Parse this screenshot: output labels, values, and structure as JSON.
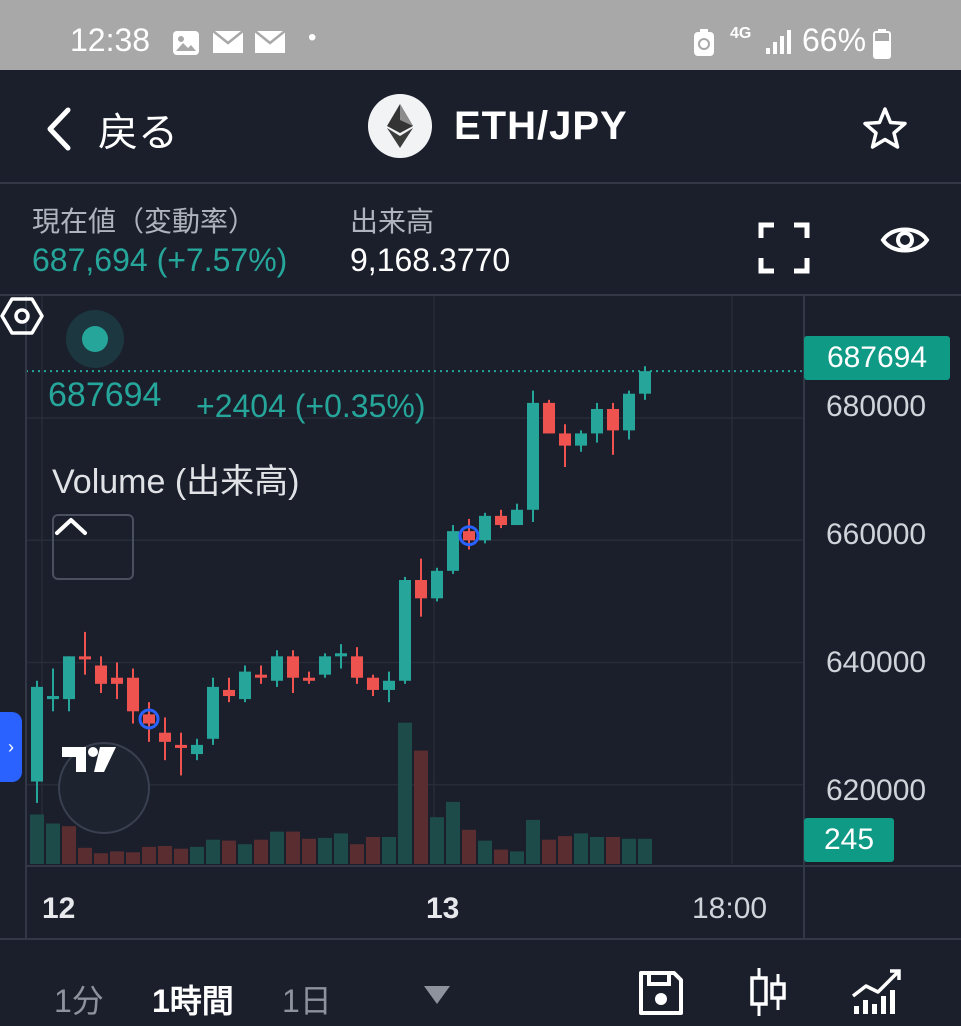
{
  "status_bar": {
    "time": "12:38",
    "network": "4G",
    "battery": "66%",
    "icons": [
      "image-icon",
      "mail-icon",
      "mail-icon",
      "dot-icon",
      "battery-saver-icon",
      "signal-icon",
      "battery-icon"
    ]
  },
  "header": {
    "back_label": "戻る",
    "pair": "ETH/JPY",
    "logo": "ethereum-icon",
    "favorite_icon": "star-icon"
  },
  "info": {
    "price_label": "現在値（変動率）",
    "price_value": "687,694 (+7.57%)",
    "volume_label": "出来高",
    "volume_value": "9,168.3770",
    "actions": [
      "fullscreen-icon",
      "eye-icon"
    ]
  },
  "chart": {
    "price": "687694",
    "change": "+2404 (+0.35%)",
    "indicator_label": "Volume (出来高)",
    "last_price_tag": "687694",
    "volume_tag": "245",
    "y_ticks": [
      "680000",
      "660000",
      "640000",
      "620000"
    ],
    "x_ticks": [
      "12",
      "13",
      "18:00"
    ],
    "colors": {
      "up": "#26a69a",
      "down": "#ef5350",
      "background": "#1a1f2b"
    }
  },
  "chart_data": {
    "type": "candlestick",
    "ylim": [
      607000,
      700000
    ],
    "y_ticks": [
      620000,
      640000,
      660000,
      680000
    ],
    "x_ticks": [
      "12",
      "13",
      "18:00"
    ],
    "last_price": 687694,
    "candles": [
      {
        "o": 620500,
        "h": 637000,
        "l": 617000,
        "c": 636000
      },
      {
        "o": 634000,
        "h": 639000,
        "l": 632000,
        "c": 634500
      },
      {
        "o": 634000,
        "h": 641000,
        "l": 632000,
        "c": 641000
      },
      {
        "o": 641000,
        "h": 645000,
        "l": 638000,
        "c": 640500
      },
      {
        "o": 639500,
        "h": 641000,
        "l": 635000,
        "c": 636500
      },
      {
        "o": 637500,
        "h": 640000,
        "l": 634000,
        "c": 636500
      },
      {
        "o": 637500,
        "h": 639000,
        "l": 630000,
        "c": 632000
      },
      {
        "o": 631500,
        "h": 633500,
        "l": 627000,
        "c": 630000
      },
      {
        "o": 628500,
        "h": 631000,
        "l": 624000,
        "c": 627000
      },
      {
        "o": 626500,
        "h": 628500,
        "l": 621500,
        "c": 626000
      },
      {
        "o": 625000,
        "h": 627500,
        "l": 624000,
        "c": 626500
      },
      {
        "o": 627500,
        "h": 637500,
        "l": 626500,
        "c": 636000
      },
      {
        "o": 635500,
        "h": 637500,
        "l": 633500,
        "c": 634500
      },
      {
        "o": 634000,
        "h": 639500,
        "l": 633500,
        "c": 638500
      },
      {
        "o": 638000,
        "h": 639500,
        "l": 636500,
        "c": 637500
      },
      {
        "o": 637000,
        "h": 642000,
        "l": 636000,
        "c": 641000
      },
      {
        "o": 641000,
        "h": 642000,
        "l": 635000,
        "c": 637500
      },
      {
        "o": 637500,
        "h": 638500,
        "l": 636500,
        "c": 637000
      },
      {
        "o": 638000,
        "h": 641500,
        "l": 637500,
        "c": 641000
      },
      {
        "o": 641000,
        "h": 643000,
        "l": 639000,
        "c": 641500
      },
      {
        "o": 641000,
        "h": 642500,
        "l": 636500,
        "c": 637500
      },
      {
        "o": 637500,
        "h": 638000,
        "l": 634500,
        "c": 635500
      },
      {
        "o": 635500,
        "h": 638500,
        "l": 633500,
        "c": 637000
      },
      {
        "o": 637000,
        "h": 654000,
        "l": 636500,
        "c": 653500
      },
      {
        "o": 653500,
        "h": 657000,
        "l": 647500,
        "c": 650500
      },
      {
        "o": 650500,
        "h": 655500,
        "l": 650000,
        "c": 655000
      },
      {
        "o": 655000,
        "h": 662500,
        "l": 654500,
        "c": 661500
      },
      {
        "o": 661500,
        "h": 663500,
        "l": 658500,
        "c": 660000
      },
      {
        "o": 660000,
        "h": 664500,
        "l": 659500,
        "c": 664000
      },
      {
        "o": 664000,
        "h": 665000,
        "l": 662000,
        "c": 662500
      },
      {
        "o": 662500,
        "h": 666000,
        "l": 662500,
        "c": 665000
      },
      {
        "o": 665000,
        "h": 684500,
        "l": 663000,
        "c": 682500
      },
      {
        "o": 682500,
        "h": 683000,
        "l": 677500,
        "c": 677500
      },
      {
        "o": 677500,
        "h": 679000,
        "l": 672000,
        "c": 675500
      },
      {
        "o": 675500,
        "h": 678000,
        "l": 674500,
        "c": 677500
      },
      {
        "o": 677500,
        "h": 682500,
        "l": 676000,
        "c": 681500
      },
      {
        "o": 681500,
        "h": 682500,
        "l": 674000,
        "c": 678000
      },
      {
        "o": 678000,
        "h": 684500,
        "l": 676500,
        "c": 684000
      },
      {
        "o": 684000,
        "h": 688500,
        "l": 683000,
        "c": 687694
      }
    ],
    "volume": [
      {
        "v": 55,
        "up": true
      },
      {
        "v": 45,
        "up": true
      },
      {
        "v": 42,
        "up": false
      },
      {
        "v": 18,
        "up": false
      },
      {
        "v": 12,
        "up": false
      },
      {
        "v": 14,
        "up": false
      },
      {
        "v": 13,
        "up": false
      },
      {
        "v": 19,
        "up": false
      },
      {
        "v": 20,
        "up": false
      },
      {
        "v": 17,
        "up": false
      },
      {
        "v": 19,
        "up": true
      },
      {
        "v": 27,
        "up": true
      },
      {
        "v": 26,
        "up": false
      },
      {
        "v": 22,
        "up": true
      },
      {
        "v": 27,
        "up": false
      },
      {
        "v": 36,
        "up": true
      },
      {
        "v": 36,
        "up": false
      },
      {
        "v": 28,
        "up": false
      },
      {
        "v": 29,
        "up": true
      },
      {
        "v": 34,
        "up": true
      },
      {
        "v": 22,
        "up": false
      },
      {
        "v": 30,
        "up": false
      },
      {
        "v": 30,
        "up": true
      },
      {
        "v": 157,
        "up": true
      },
      {
        "v": 126,
        "up": false
      },
      {
        "v": 52,
        "up": true
      },
      {
        "v": 69,
        "up": true
      },
      {
        "v": 38,
        "up": false
      },
      {
        "v": 26,
        "up": true
      },
      {
        "v": 16,
        "up": false
      },
      {
        "v": 14,
        "up": true
      },
      {
        "v": 49,
        "up": true
      },
      {
        "v": 27,
        "up": false
      },
      {
        "v": 31,
        "up": false
      },
      {
        "v": 34,
        "up": true
      },
      {
        "v": 30,
        "up": true
      },
      {
        "v": 30,
        "up": false
      },
      {
        "v": 28,
        "up": true
      },
      {
        "v": 28,
        "up": true
      }
    ],
    "markers": [
      7,
      27
    ]
  },
  "toolbar": {
    "timeframes": [
      "1分",
      "1時間",
      "1日"
    ],
    "active": "1時間",
    "icons": [
      "dropdown-icon",
      "save-icon",
      "candlestick-icon",
      "indicators-icon"
    ]
  }
}
